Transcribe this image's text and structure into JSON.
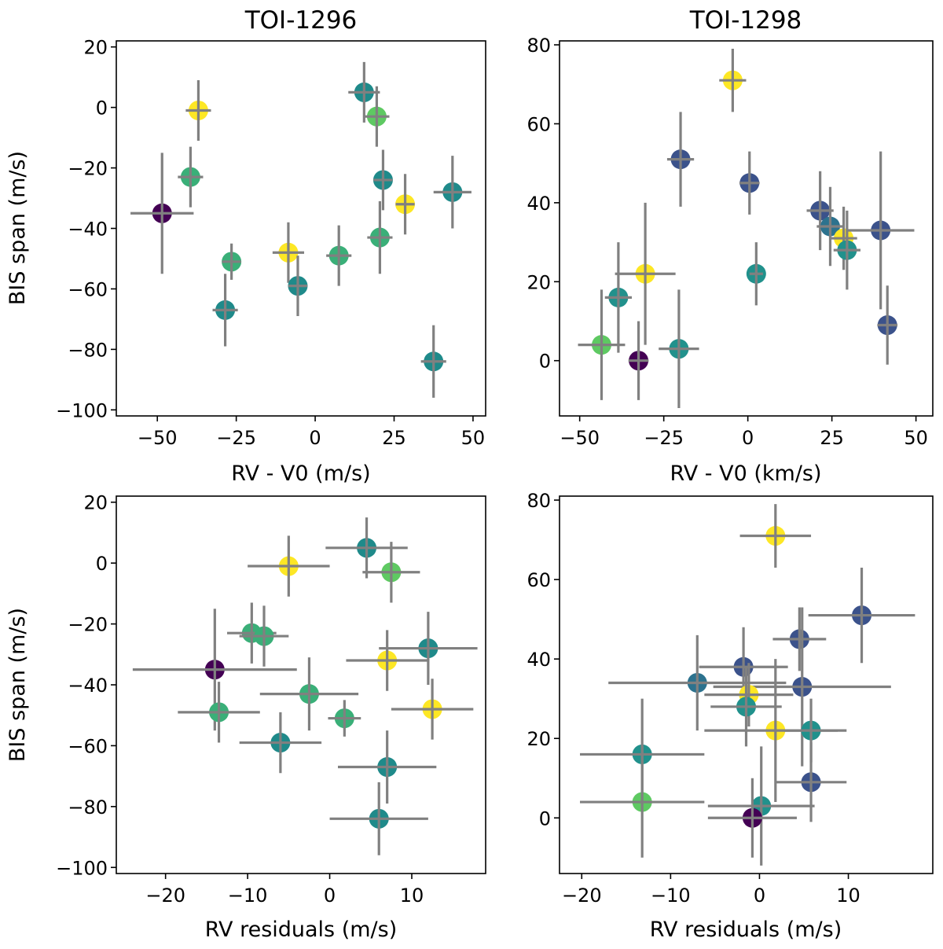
{
  "colors": {
    "errorbar": "#808080",
    "palette": [
      "#440154",
      "#3b528b",
      "#21918c",
      "#5ec962",
      "#fde725"
    ]
  },
  "chart_data": [
    {
      "type": "scatter",
      "title": "TOI-1296",
      "xlabel": "RV - V0 (m/s)",
      "ylabel": "BIS span (m/s)",
      "xlim": [
        -63,
        54
      ],
      "ylim": [
        -102,
        22
      ],
      "xticks": [
        -50,
        -25,
        0,
        25,
        50
      ],
      "yticks": [
        -100,
        -80,
        -60,
        -40,
        -20,
        0,
        20
      ],
      "points": [
        {
          "x": -48.5,
          "y": -35,
          "xerr": 10,
          "yerr": 20,
          "color": "#440154"
        },
        {
          "x": -37,
          "y": -1,
          "xerr": 4,
          "yerr": 10,
          "color": "#fde725"
        },
        {
          "x": -39.5,
          "y": -23,
          "xerr": 4,
          "yerr": 10,
          "color": "#3aaf78"
        },
        {
          "x": -26.5,
          "y": -51,
          "xerr": 3,
          "yerr": 6,
          "color": "#3aaf78"
        },
        {
          "x": -28.5,
          "y": -67,
          "xerr": 4,
          "yerr": 12,
          "color": "#1f8a8a"
        },
        {
          "x": -8.5,
          "y": -48,
          "xerr": 5,
          "yerr": 10,
          "color": "#fde725"
        },
        {
          "x": -5.5,
          "y": -59,
          "xerr": 3,
          "yerr": 10,
          "color": "#1f8a8a"
        },
        {
          "x": 7.5,
          "y": -49,
          "xerr": 4,
          "yerr": 10,
          "color": "#3aaf78"
        },
        {
          "x": 15.5,
          "y": 5,
          "xerr": 5,
          "yerr": 10,
          "color": "#1f8a8a"
        },
        {
          "x": 19.5,
          "y": -3,
          "xerr": 4,
          "yerr": 10,
          "color": "#5ec962"
        },
        {
          "x": 21.5,
          "y": -24,
          "xerr": 3,
          "yerr": 10,
          "color": "#1f8a8a"
        },
        {
          "x": 20.5,
          "y": -43,
          "xerr": 4,
          "yerr": 12,
          "color": "#3aaf78"
        },
        {
          "x": 28.5,
          "y": -32,
          "xerr": 3,
          "yerr": 10,
          "color": "#fde725"
        },
        {
          "x": 43.5,
          "y": -28,
          "xerr": 6,
          "yerr": 12,
          "color": "#1f8a8a"
        },
        {
          "x": 37.5,
          "y": -84,
          "xerr": 4,
          "yerr": 12,
          "color": "#1f8a8a"
        }
      ]
    },
    {
      "type": "scatter",
      "title": "TOI-1298",
      "xlabel": "RV - V0 (km/s)",
      "ylabel": "",
      "xlim": [
        -56,
        55
      ],
      "ylim": [
        -14,
        81
      ],
      "xticks": [
        -50,
        -25,
        0,
        25,
        50
      ],
      "yticks": [
        0,
        20,
        40,
        60,
        80
      ],
      "points": [
        {
          "x": -43.5,
          "y": 4,
          "xerr": 7,
          "yerr": 14,
          "color": "#5ec962"
        },
        {
          "x": -32.5,
          "y": 0,
          "xerr": 3,
          "yerr": 10,
          "color": "#440154"
        },
        {
          "x": -38.5,
          "y": 16,
          "xerr": 4,
          "yerr": 14,
          "color": "#21918c"
        },
        {
          "x": -30.5,
          "y": 22,
          "xerr": 9,
          "yerr": 18,
          "color": "#fde725"
        },
        {
          "x": -20.5,
          "y": 3,
          "xerr": 6,
          "yerr": 15,
          "color": "#21918c"
        },
        {
          "x": -20,
          "y": 51,
          "xerr": 4,
          "yerr": 12,
          "color": "#3b528b"
        },
        {
          "x": -4.5,
          "y": 71,
          "xerr": 4,
          "yerr": 8,
          "color": "#fde725"
        },
        {
          "x": 0.5,
          "y": 45,
          "xerr": 3,
          "yerr": 8,
          "color": "#3b528b"
        },
        {
          "x": 2.5,
          "y": 22,
          "xerr": 2,
          "yerr": 8,
          "color": "#21918c"
        },
        {
          "x": 21.5,
          "y": 38,
          "xerr": 4,
          "yerr": 10,
          "color": "#3b528b"
        },
        {
          "x": 24.5,
          "y": 34,
          "xerr": 4,
          "yerr": 10,
          "color": "#2c728e"
        },
        {
          "x": 28.5,
          "y": 31,
          "xerr": 4,
          "yerr": 8,
          "color": "#fde725"
        },
        {
          "x": 29.5,
          "y": 28,
          "xerr": 4,
          "yerr": 10,
          "color": "#21918c"
        },
        {
          "x": 39.5,
          "y": 33,
          "xerr": 10,
          "yerr": 20,
          "color": "#3b528b"
        },
        {
          "x": 41.5,
          "y": 9,
          "xerr": 3,
          "yerr": 10,
          "color": "#3b528b"
        }
      ]
    },
    {
      "type": "scatter",
      "title": "",
      "xlabel": "RV residuals (m/s)",
      "ylabel": "BIS span (m/s)",
      "xlim": [
        -26,
        19
      ],
      "ylim": [
        -102,
        22
      ],
      "xticks": [
        -20,
        -10,
        0,
        10
      ],
      "yticks": [
        -100,
        -80,
        -60,
        -40,
        -20,
        0,
        20
      ],
      "points": [
        {
          "x": -14,
          "y": -35,
          "xerr": 10,
          "yerr": 20,
          "color": "#440154"
        },
        {
          "x": -5,
          "y": -1,
          "xerr": 5,
          "yerr": 10,
          "color": "#fde725"
        },
        {
          "x": -9.5,
          "y": -23,
          "xerr": 3,
          "yerr": 10,
          "color": "#3aaf78"
        },
        {
          "x": -8,
          "y": -24,
          "xerr": 3,
          "yerr": 10,
          "color": "#3aaf78"
        },
        {
          "x": -13.5,
          "y": -49,
          "xerr": 5,
          "yerr": 10,
          "color": "#3aaf78"
        },
        {
          "x": -2.5,
          "y": -43,
          "xerr": 6,
          "yerr": 12,
          "color": "#3aaf78"
        },
        {
          "x": -6,
          "y": -59,
          "xerr": 5,
          "yerr": 10,
          "color": "#1f8a8a"
        },
        {
          "x": 4.5,
          "y": 5,
          "xerr": 5,
          "yerr": 10,
          "color": "#1f8a8a"
        },
        {
          "x": 7.5,
          "y": -3,
          "xerr": 3.5,
          "yerr": 10,
          "color": "#5ec962"
        },
        {
          "x": 7,
          "y": -32,
          "xerr": 5,
          "yerr": 10,
          "color": "#fde725"
        },
        {
          "x": 12,
          "y": -28,
          "xerr": 6,
          "yerr": 12,
          "color": "#1f8a8a"
        },
        {
          "x": 12.5,
          "y": -48,
          "xerr": 5,
          "yerr": 10,
          "color": "#fde725"
        },
        {
          "x": 1.8,
          "y": -51,
          "xerr": 2,
          "yerr": 6,
          "color": "#3aaf78"
        },
        {
          "x": 7,
          "y": -67,
          "xerr": 6,
          "yerr": 12,
          "color": "#1f8a8a"
        },
        {
          "x": 6,
          "y": -84,
          "xerr": 6,
          "yerr": 12,
          "color": "#1f8a8a"
        }
      ]
    },
    {
      "type": "scatter",
      "title": "",
      "xlabel": "RV residuals (m/s)",
      "ylabel": "",
      "xlim": [
        -22.5,
        19.5
      ],
      "ylim": [
        -14,
        81
      ],
      "xticks": [
        -20,
        -10,
        0,
        10
      ],
      "yticks": [
        0,
        20,
        40,
        60,
        80
      ],
      "points": [
        {
          "x": 1.8,
          "y": 71,
          "xerr": 4,
          "yerr": 8,
          "color": "#fde725"
        },
        {
          "x": 11.5,
          "y": 51,
          "xerr": 6,
          "yerr": 12,
          "color": "#3b528b"
        },
        {
          "x": 4.5,
          "y": 45,
          "xerr": 3,
          "yerr": 8,
          "color": "#3b528b"
        },
        {
          "x": -1.8,
          "y": 38,
          "xerr": 5,
          "yerr": 10,
          "color": "#3b528b"
        },
        {
          "x": -7,
          "y": 34,
          "xerr": 10,
          "yerr": 12,
          "color": "#2c728e"
        },
        {
          "x": 4.8,
          "y": 33,
          "xerr": 10,
          "yerr": 20,
          "color": "#3b528b"
        },
        {
          "x": -1.2,
          "y": 31,
          "xerr": 5,
          "yerr": 8,
          "color": "#fde725"
        },
        {
          "x": -1.5,
          "y": 28,
          "xerr": 4,
          "yerr": 10,
          "color": "#21918c"
        },
        {
          "x": 1.8,
          "y": 22,
          "xerr": 8,
          "yerr": 18,
          "color": "#fde725"
        },
        {
          "x": 5.8,
          "y": 22,
          "xerr": 3,
          "yerr": 8,
          "color": "#21918c"
        },
        {
          "x": -13.2,
          "y": 16,
          "xerr": 7,
          "yerr": 14,
          "color": "#21918c"
        },
        {
          "x": -13.2,
          "y": 4,
          "xerr": 7,
          "yerr": 14,
          "color": "#5ec962"
        },
        {
          "x": 5.8,
          "y": 9,
          "xerr": 4,
          "yerr": 10,
          "color": "#3b528b"
        },
        {
          "x": 0.2,
          "y": 3,
          "xerr": 6,
          "yerr": 15,
          "color": "#21918c"
        },
        {
          "x": -0.8,
          "y": 0,
          "xerr": 5,
          "yerr": 10,
          "color": "#440154"
        }
      ]
    }
  ]
}
